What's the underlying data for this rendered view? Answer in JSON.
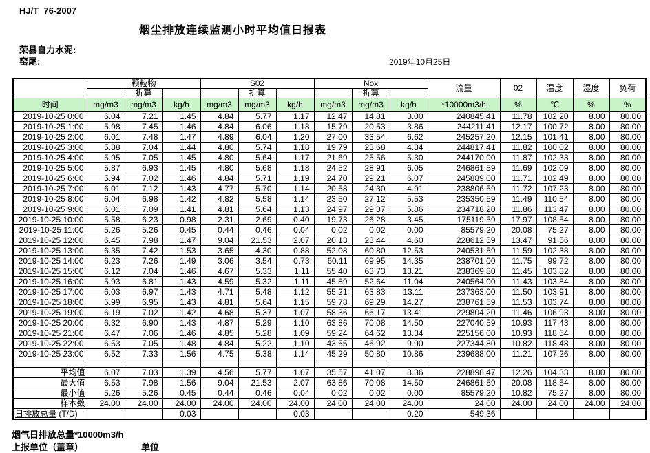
{
  "page": {
    "doc_code": "HJ/T  76-2007",
    "title": "烟尘排放连续监测小时平均值日报表",
    "company": "荣县自力水泥:",
    "station": "窑尾:",
    "date": "2019年10月25日"
  },
  "table": {
    "col_groups": {
      "time": "时间",
      "pm": "颗粒物",
      "so2": "S02",
      "nox": "Nox",
      "flow": "流量",
      "o2": "02",
      "temp": "温度",
      "humidity": "湿度",
      "load": "负荷"
    },
    "converted_label": "折算",
    "units": {
      "mg": "mg/m3",
      "kg": "kg/h",
      "flow": "*10000m3/h",
      "percent": "%",
      "celsius": "℃"
    },
    "rows": [
      {
        "time": "2019-10-25 0:00",
        "values": [
          "6.04",
          "7.21",
          "1.45",
          "4.84",
          "5.77",
          "1.17",
          "12.47",
          "14.81",
          "3.00",
          "240845.41",
          "11.78",
          "102.20",
          "8.00",
          "80.00"
        ]
      },
      {
        "time": "2019-10-25 1:00",
        "values": [
          "5.98",
          "7.45",
          "1.46",
          "4.84",
          "6.06",
          "1.18",
          "15.79",
          "20.53",
          "3.86",
          "244211.41",
          "12.17",
          "100.72",
          "8.00",
          "80.00"
        ]
      },
      {
        "time": "2019-10-25 2:00",
        "values": [
          "6.01",
          "7.48",
          "1.47",
          "4.89",
          "6.04",
          "1.20",
          "27.00",
          "33.54",
          "6.62",
          "245257.20",
          "12.15",
          "101.41",
          "8.00",
          "80.00"
        ]
      },
      {
        "time": "2019-10-25 3:00",
        "values": [
          "5.88",
          "7.04",
          "1.44",
          "4.80",
          "5.74",
          "1.18",
          "19.79",
          "23.68",
          "4.84",
          "244817.41",
          "11.82",
          "100.02",
          "8.00",
          "80.00"
        ]
      },
      {
        "time": "2019-10-25 4:00",
        "values": [
          "5.95",
          "7.05",
          "1.45",
          "4.80",
          "5.64",
          "1.17",
          "21.69",
          "25.56",
          "5.30",
          "244170.00",
          "11.87",
          "102.33",
          "8.00",
          "80.00"
        ]
      },
      {
        "time": "2019-10-25 5:00",
        "values": [
          "5.87",
          "6.93",
          "1.45",
          "4.80",
          "5.68",
          "1.18",
          "24.52",
          "28.91",
          "6.05",
          "246861.59",
          "11.69",
          "102.09",
          "8.00",
          "80.00"
        ]
      },
      {
        "time": "2019-10-25 6:00",
        "values": [
          "5.94",
          "7.02",
          "1.46",
          "4.84",
          "5.71",
          "1.19",
          "24.70",
          "29.21",
          "6.07",
          "245889.00",
          "11.71",
          "102.49",
          "8.00",
          "80.00"
        ]
      },
      {
        "time": "2019-10-25 7:00",
        "values": [
          "6.01",
          "7.12",
          "1.43",
          "4.77",
          "5.70",
          "1.14",
          "20.58",
          "24.30",
          "4.91",
          "238806.59",
          "11.72",
          "107.23",
          "8.00",
          "80.00"
        ]
      },
      {
        "time": "2019-10-25 8:00",
        "values": [
          "6.04",
          "6.98",
          "1.42",
          "4.82",
          "5.58",
          "1.14",
          "23.50",
          "27.12",
          "5.53",
          "235350.59",
          "11.49",
          "110.54",
          "8.00",
          "80.00"
        ]
      },
      {
        "time": "2019-10-25 9:00",
        "values": [
          "6.01",
          "7.09",
          "1.41",
          "4.81",
          "5.64",
          "1.13",
          "24.97",
          "29.37",
          "5.86",
          "234718.20",
          "11.86",
          "113.47",
          "8.00",
          "80.00"
        ]
      },
      {
        "time": "2019-10-25 10:00",
        "values": [
          "5.58",
          "6.23",
          "0.98",
          "2.31",
          "2.69",
          "0.40",
          "19.73",
          "26.28",
          "3.45",
          "175119.59",
          "17.97",
          "108.54",
          "8.00",
          "80.00"
        ]
      },
      {
        "time": "2019-10-25 11:00",
        "values": [
          "5.26",
          "5.26",
          "0.45",
          "0.44",
          "0.46",
          "0.04",
          "0.02",
          "0.02",
          "0.00",
          "85579.20",
          "20.08",
          "75.27",
          "8.00",
          "80.00"
        ]
      },
      {
        "time": "2019-10-25 12:00",
        "values": [
          "6.45",
          "7.98",
          "1.47",
          "9.04",
          "21.53",
          "2.07",
          "20.13",
          "23.44",
          "4.60",
          "228612.59",
          "13.47",
          "91.56",
          "8.00",
          "80.00"
        ]
      },
      {
        "time": "2019-10-25 13:00",
        "values": [
          "6.35",
          "7.42",
          "1.53",
          "3.65",
          "4.30",
          "0.88",
          "52.08",
          "60.80",
          "12.53",
          "240531.59",
          "11.59",
          "102.38",
          "8.00",
          "80.00"
        ]
      },
      {
        "time": "2019-10-25 14:00",
        "values": [
          "6.23",
          "7.26",
          "1.49",
          "3.06",
          "3.54",
          "0.73",
          "60.11",
          "69.95",
          "14.35",
          "238701.00",
          "11.75",
          "99.72",
          "8.00",
          "80.00"
        ]
      },
      {
        "time": "2019-10-25 15:00",
        "values": [
          "6.12",
          "7.04",
          "1.46",
          "4.67",
          "5.33",
          "1.11",
          "55.40",
          "63.73",
          "13.21",
          "238369.80",
          "11.45",
          "103.82",
          "8.00",
          "80.00"
        ]
      },
      {
        "time": "2019-10-25 16:00",
        "values": [
          "5.93",
          "6.81",
          "1.43",
          "4.59",
          "5.32",
          "1.11",
          "45.89",
          "52.64",
          "11.04",
          "240564.00",
          "11.43",
          "103.84",
          "8.00",
          "80.00"
        ]
      },
      {
        "time": "2019-10-25 17:00",
        "values": [
          "6.03",
          "6.97",
          "1.43",
          "4.71",
          "5.48",
          "1.12",
          "55.21",
          "63.83",
          "13.11",
          "237363.00",
          "11.50",
          "103.91",
          "8.00",
          "80.00"
        ]
      },
      {
        "time": "2019-10-25 18:00",
        "values": [
          "5.99",
          "6.95",
          "1.43",
          "4.81",
          "5.64",
          "1.15",
          "59.78",
          "69.29",
          "14.27",
          "238761.59",
          "11.53",
          "103.74",
          "8.00",
          "80.00"
        ]
      },
      {
        "time": "2019-10-25 19:00",
        "values": [
          "6.19",
          "7.02",
          "1.42",
          "4.68",
          "5.37",
          "1.07",
          "58.36",
          "66.17",
          "13.41",
          "229804.20",
          "11.46",
          "106.93",
          "8.00",
          "80.00"
        ]
      },
      {
        "time": "2019-10-25 20:00",
        "values": [
          "6.32",
          "6.90",
          "1.43",
          "4.87",
          "5.29",
          "1.10",
          "63.86",
          "70.08",
          "14.50",
          "227040.59",
          "10.93",
          "117.43",
          "8.00",
          "80.00"
        ]
      },
      {
        "time": "2019-10-25 21:00",
        "values": [
          "6.47",
          "7.06",
          "1.46",
          "4.85",
          "5.28",
          "1.09",
          "59.24",
          "64.62",
          "13.34",
          "225156.00",
          "10.93",
          "118.54",
          "8.00",
          "80.00"
        ]
      },
      {
        "time": "2019-10-25 22:00",
        "values": [
          "6.53",
          "7.05",
          "1.48",
          "4.84",
          "5.22",
          "1.10",
          "43.55",
          "46.92",
          "9.90",
          "227344.80",
          "10.82",
          "118.48",
          "8.00",
          "80.00"
        ]
      },
      {
        "time": "2019-10-25 23:00",
        "values": [
          "6.52",
          "7.33",
          "1.56",
          "4.75",
          "5.38",
          "1.14",
          "45.29",
          "50.80",
          "10.86",
          "239688.00",
          "11.21",
          "107.26",
          "8.00",
          "80.00"
        ]
      }
    ],
    "summary": [
      {
        "label": "平均值",
        "values": [
          "6.07",
          "7.03",
          "1.39",
          "4.56",
          "5.77",
          "1.07",
          "35.57",
          "41.07",
          "8.36",
          "228898.47",
          "12.26",
          "104.33",
          "8.00",
          "80.00"
        ]
      },
      {
        "label": "最大值",
        "values": [
          "6.53",
          "7.98",
          "1.56",
          "9.04",
          "21.53",
          "2.07",
          "63.86",
          "70.08",
          "14.50",
          "246861.59",
          "20.08",
          "118.54",
          "8.00",
          "80.00"
        ]
      },
      {
        "label": "最小值",
        "values": [
          "5.26",
          "5.26",
          "0.45",
          "0.44",
          "0.46",
          "0.04",
          "0.02",
          "0.02",
          "0.00",
          "85579.20",
          "10.82",
          "75.27",
          "8.00",
          "80.00"
        ]
      },
      {
        "label": "样本数",
        "values": [
          "24.00",
          "24.00",
          "24.00",
          "24.00",
          "24.00",
          "24.00",
          "24.00",
          "24.00",
          "24.00",
          "24.00",
          "24.00",
          "24.00",
          "24.00",
          "24.00"
        ]
      }
    ],
    "total_row": {
      "label_main": "日排放总量",
      "label_suffix": " (T/D)",
      "values": [
        "",
        "",
        "0.03",
        "",
        "",
        "0.03",
        "",
        "",
        "0.20",
        "549.36",
        "",
        "",
        "",
        ""
      ]
    }
  },
  "footer": {
    "flow_total_label": "烟气日排放总量*10000m3/h",
    "report_unit_label": "上报单位（盖章）",
    "unit_label": "单位"
  },
  "colors": {
    "header_green": "#c9f4c9"
  }
}
